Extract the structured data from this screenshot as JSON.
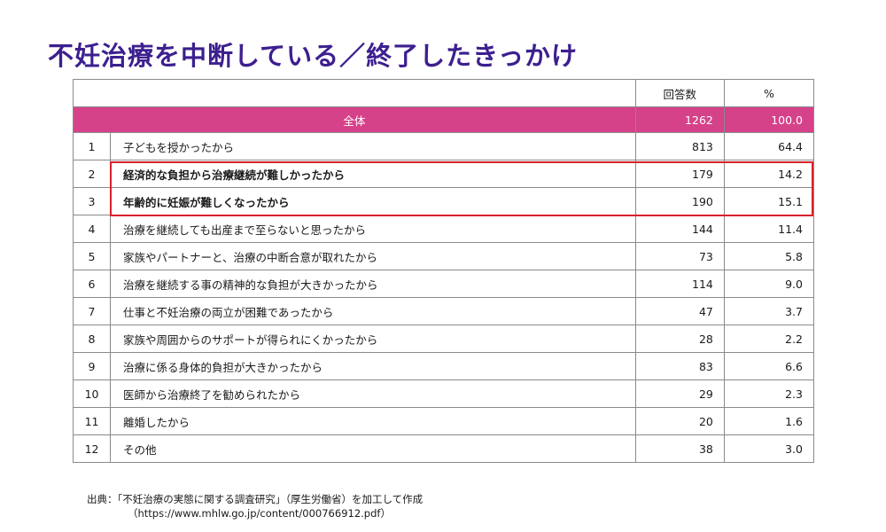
{
  "title": "不妊治療を中断している／終了したきっかけ",
  "chart_data": {
    "type": "table",
    "columns": [
      "回答数",
      "%"
    ],
    "total": {
      "label": "全体",
      "count": "1262",
      "pct": "100.0"
    },
    "rows": [
      {
        "no": "1",
        "label": "子どもを授かったから",
        "count": "813",
        "pct": "64.4",
        "highlight": false
      },
      {
        "no": "2",
        "label": "経済的な負担から治療継続が難しかったから",
        "count": "179",
        "pct": "14.2",
        "highlight": true
      },
      {
        "no": "3",
        "label": "年齢的に妊娠が難しくなったから",
        "count": "190",
        "pct": "15.1",
        "highlight": true
      },
      {
        "no": "4",
        "label": "治療を継続しても出産まで至らないと思ったから",
        "count": "144",
        "pct": "11.4",
        "highlight": false
      },
      {
        "no": "5",
        "label": "家族やパートナーと、治療の中断合意が取れたから",
        "count": "73",
        "pct": "5.8",
        "highlight": false
      },
      {
        "no": "6",
        "label": "治療を継続する事の精神的な負担が大きかったから",
        "count": "114",
        "pct": "9.0",
        "highlight": false
      },
      {
        "no": "7",
        "label": "仕事と不妊治療の両立が困難であったから",
        "count": "47",
        "pct": "3.7",
        "highlight": false
      },
      {
        "no": "8",
        "label": "家族や周囲からのサポートが得られにくかったから",
        "count": "28",
        "pct": "2.2",
        "highlight": false
      },
      {
        "no": "9",
        "label": "治療に係る身体的負担が大きかったから",
        "count": "83",
        "pct": "6.6",
        "highlight": false
      },
      {
        "no": "10",
        "label": "医師から治療終了を勧められたから",
        "count": "29",
        "pct": "2.3",
        "highlight": false
      },
      {
        "no": "11",
        "label": "離婚したから",
        "count": "20",
        "pct": "1.6",
        "highlight": false
      },
      {
        "no": "12",
        "label": "その他",
        "count": "38",
        "pct": "3.0",
        "highlight": false
      }
    ]
  },
  "source": {
    "line1": "出典：「不妊治療の実態に関する調査研究」（厚生労働省）を加工して作成",
    "line2": "（https://www.mhlw.go.jp/content/000766912.pdf）"
  },
  "colors": {
    "title": "#3d1f8f",
    "total_row": "#d6428a",
    "highlight_border": "#d8212c"
  }
}
